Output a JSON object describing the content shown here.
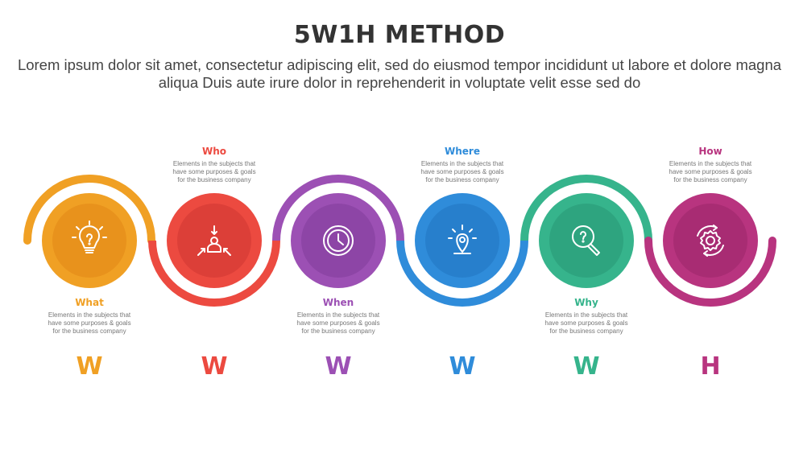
{
  "title": "5W1H METHOD",
  "subtitle": "Lorem ipsum dolor sit amet, consectetur adipiscing elit, sed do eiusmod tempor incididunt ut labore et dolore magna aliqua Duis aute irure dolor in reprehenderit in voluptate velit esse sed do",
  "steps": [
    {
      "label": "What",
      "letter": "W",
      "desc": "Elements in the subjects that\nhave  some purposes & goals\nfor the  business company",
      "color": "#F0A024",
      "inner": "#E8921C",
      "icon": "lightbulb-question-icon",
      "position": "bottom"
    },
    {
      "label": "Who",
      "letter": "W",
      "desc": "Elements in the subjects that\nhave  some purposes & goals\nfor the  business company",
      "color": "#EC4A40",
      "inner": "#DC3F38",
      "icon": "person-arrows-icon",
      "position": "top"
    },
    {
      "label": "When",
      "letter": "W",
      "desc": "Elements in the subjects that\nhave  some purposes & goals\nfor the  business company",
      "color": "#9C50B4",
      "inner": "#8D45A6",
      "icon": "clock-icon",
      "position": "bottom"
    },
    {
      "label": "Where",
      "letter": "W",
      "desc": "Elements in the subjects that\nhave  some purposes & goals\nfor the  business company",
      "color": "#2F8CDA",
      "inner": "#277FCC",
      "icon": "location-pin-icon",
      "position": "top"
    },
    {
      "label": "Why",
      "letter": "W",
      "desc": "Elements in the subjects that\nhave  some purposes & goals\nfor the  business company",
      "color": "#36B48C",
      "inner": "#2EA47F",
      "icon": "magnifier-question-icon",
      "position": "bottom"
    },
    {
      "label": "How",
      "letter": "H",
      "desc": "Elements in the subjects that\nhave  some purposes & goals\nfor the  business company",
      "color": "#B8347F",
      "inner": "#A82C73",
      "icon": "gear-cycle-icon",
      "position": "top"
    }
  ]
}
